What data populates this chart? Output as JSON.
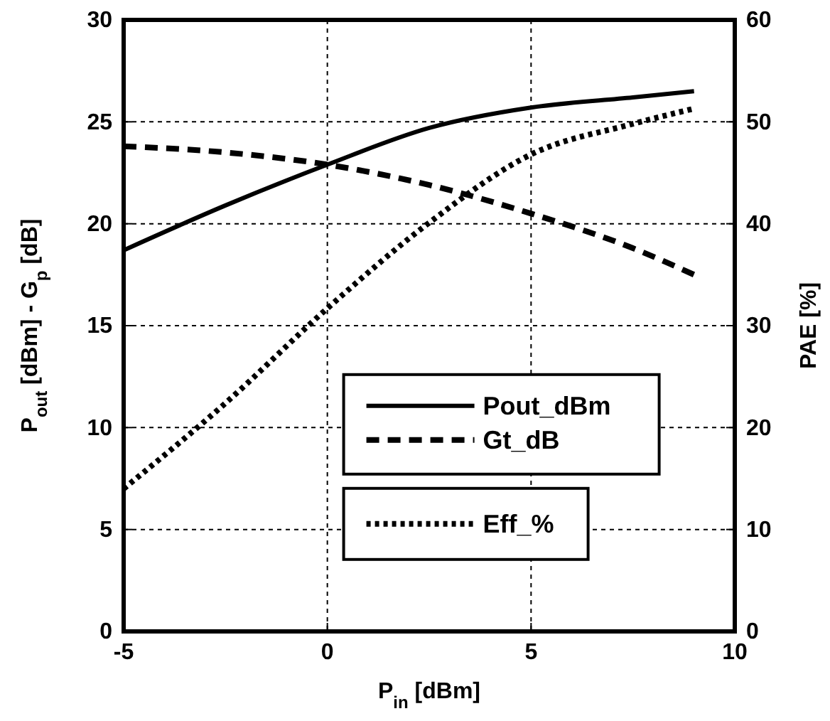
{
  "chart_data": {
    "type": "line",
    "xlabel": "P$_{in}$ [dBm]",
    "ylabel": "P$_{out}$ [dBm] - G$_{p}$ [dB]",
    "y2label": "PAE [%]",
    "xlim": [
      -5,
      10
    ],
    "xticks": [
      -5,
      0,
      5,
      10
    ],
    "ylim": [
      0,
      30
    ],
    "yticks": [
      0,
      5,
      10,
      15,
      20,
      25,
      30
    ],
    "y2lim": [
      0,
      60
    ],
    "y2ticks": [
      0,
      10,
      20,
      30,
      40,
      50,
      60
    ],
    "grid": true,
    "legend": "bottom right",
    "marker": "none",
    "series": [
      {
        "name": "Pout_dBm",
        "color": "#000000",
        "line_style": "solid",
        "x": [
          -5,
          -2.5,
          0,
          2.5,
          5,
          7.5,
          9
        ],
        "values": [
          18.7,
          20.9,
          22.9,
          24.7,
          25.7,
          26.2,
          26.5
        ]
      },
      {
        "name": "Gt_dB",
        "color": "#000000",
        "line_style": "dashed",
        "x": [
          -5,
          -2.5,
          0,
          2.5,
          5,
          7.5,
          9
        ],
        "values": [
          23.8,
          23.5,
          22.9,
          21.9,
          20.5,
          18.8,
          17.5
        ]
      },
      {
        "name": "Eff_%",
        "color": "#000000",
        "line_style": "dotted",
        "axis": "y2",
        "x": [
          -5,
          -2.5,
          0,
          2.5,
          5,
          7.5,
          9
        ],
        "values": [
          14,
          22.4,
          31.7,
          40.1,
          46.8,
          49.8,
          51.3
        ]
      }
    ]
  }
}
